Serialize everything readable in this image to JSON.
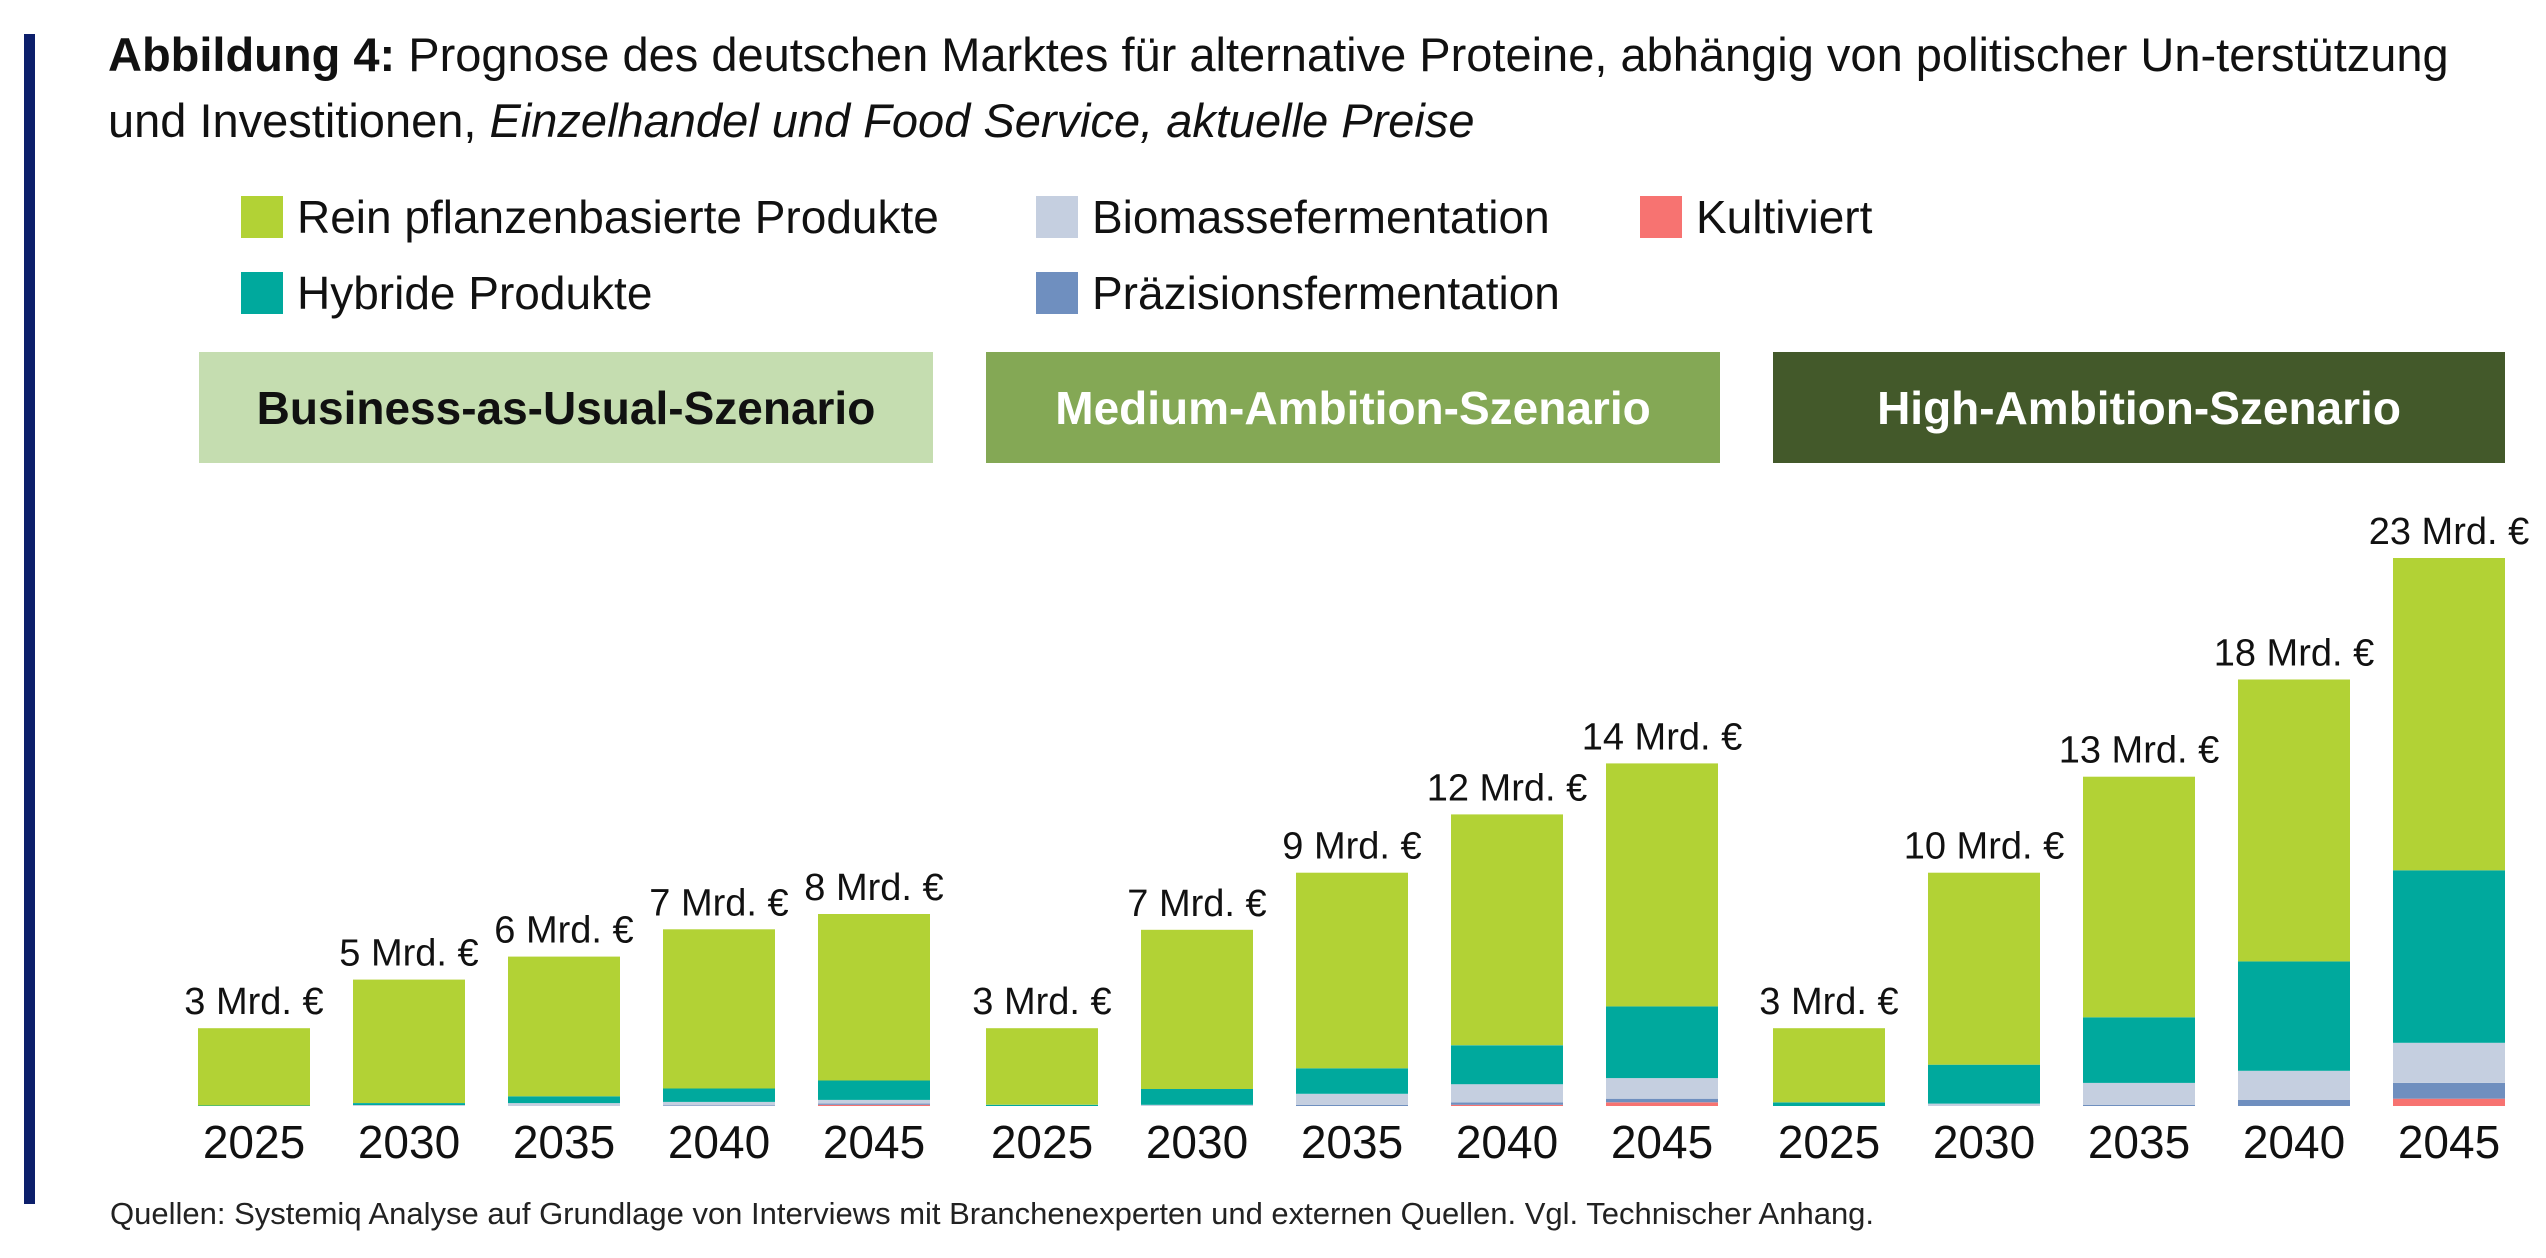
{
  "title": {
    "label": "Abbildung 4:",
    "text": " Prognose des deutschen Marktes für alternative Proteine, abhängig von politischer Un-terstützung und Investitionen, ",
    "italic": "Einzelhandel und Food Service, aktuelle Preise"
  },
  "legend": [
    {
      "name": "Rein pflanzenbasierte Produkte",
      "color": "#b2d235"
    },
    {
      "name": "Biomassefermentation",
      "color": "#c5cfe0"
    },
    {
      "name": "Kultiviert",
      "color": "#f77371"
    },
    {
      "name": "Hybride Produkte",
      "color": "#00a99d"
    },
    {
      "name": "Präzisionsfermentation",
      "color": "#6f8fbf"
    }
  ],
  "scenarios": [
    {
      "label": "Business-as-Usual-Szenario",
      "bg": "#c5ddb0",
      "fg": "#111111"
    },
    {
      "label": "Medium-Ambition-Szenario",
      "bg": "#84a855",
      "fg": "#ffffff"
    },
    {
      "label": "High-Ambition-Szenario",
      "bg": "#43592a",
      "fg": "#ffffff"
    }
  ],
  "chart_data": {
    "type": "bar",
    "stacked": true,
    "unit": "Mrd. €",
    "categories": [
      "2025",
      "2030",
      "2035",
      "2040",
      "2045"
    ],
    "groups": [
      {
        "scenario": "Business-as-Usual-Szenario",
        "totals_label": [
          "3 Mrd. €",
          "5 Mrd. €",
          "6 Mrd. €",
          "7 Mrd. €",
          "8 Mrd. €"
        ],
        "series": [
          {
            "name": "Kultiviert",
            "values": [
              0,
              0,
              0,
              0,
              0.05
            ]
          },
          {
            "name": "Präzisionsfermentation",
            "values": [
              0,
              0,
              0,
              0.02,
              0.05
            ]
          },
          {
            "name": "Biomassefermentation",
            "values": [
              0,
              0.04,
              0.12,
              0.15,
              0.15
            ]
          },
          {
            "name": "Hybride Produkte",
            "values": [
              0.02,
              0.08,
              0.28,
              0.55,
              0.8
            ]
          },
          {
            "name": "Rein pflanzenbasierte Produkte",
            "values": [
              3.18,
              5.08,
              5.75,
              6.55,
              6.85
            ]
          }
        ]
      },
      {
        "scenario": "Medium-Ambition-Szenario",
        "totals_label": [
          "3 Mrd. €",
          "7 Mrd. €",
          "9 Mrd. €",
          "12 Mrd. €",
          "14 Mrd. €"
        ],
        "series": [
          {
            "name": "Kultiviert",
            "values": [
              0,
              0,
              0,
              0.05,
              0.15
            ]
          },
          {
            "name": "Präzisionsfermentation",
            "values": [
              0,
              0,
              0.05,
              0.1,
              0.15
            ]
          },
          {
            "name": "Biomassefermentation",
            "values": [
              0,
              0.05,
              0.45,
              0.75,
              0.85
            ]
          },
          {
            "name": "Hybride Produkte",
            "values": [
              0.05,
              0.65,
              1.05,
              1.6,
              2.95
            ]
          },
          {
            "name": "Rein pflanzenbasierte Produkte",
            "values": [
              3.15,
              6.55,
              8.05,
              9.5,
              10.0
            ]
          }
        ]
      },
      {
        "scenario": "High-Ambition-Szenario",
        "totals_label": [
          "3 Mrd. €",
          "10 Mrd. €",
          "13 Mrd. €",
          "18 Mrd. €",
          "23 Mrd. €"
        ],
        "series": [
          {
            "name": "Kultiviert",
            "values": [
              0,
              0,
              0,
              0,
              0.3
            ]
          },
          {
            "name": "Präzisionsfermentation",
            "values": [
              0,
              0,
              0.05,
              0.25,
              0.65
            ]
          },
          {
            "name": "Biomassefermentation",
            "values": [
              0,
              0.1,
              0.9,
              1.2,
              1.65
            ]
          },
          {
            "name": "Hybride Produkte",
            "values": [
              0.15,
              1.6,
              2.7,
              4.5,
              7.1
            ]
          },
          {
            "name": "Rein pflanzenbasierte Produkte",
            "values": [
              3.05,
              7.9,
              9.9,
              11.6,
              12.85
            ]
          }
        ]
      }
    ],
    "ymax": 24,
    "grid": false,
    "legend_position": "top-left"
  },
  "source": "Quellen: Systemiq Analyse auf Grundlage von Interviews mit Branchenexperten und externen Quellen. Vgl. Technischer Anhang."
}
